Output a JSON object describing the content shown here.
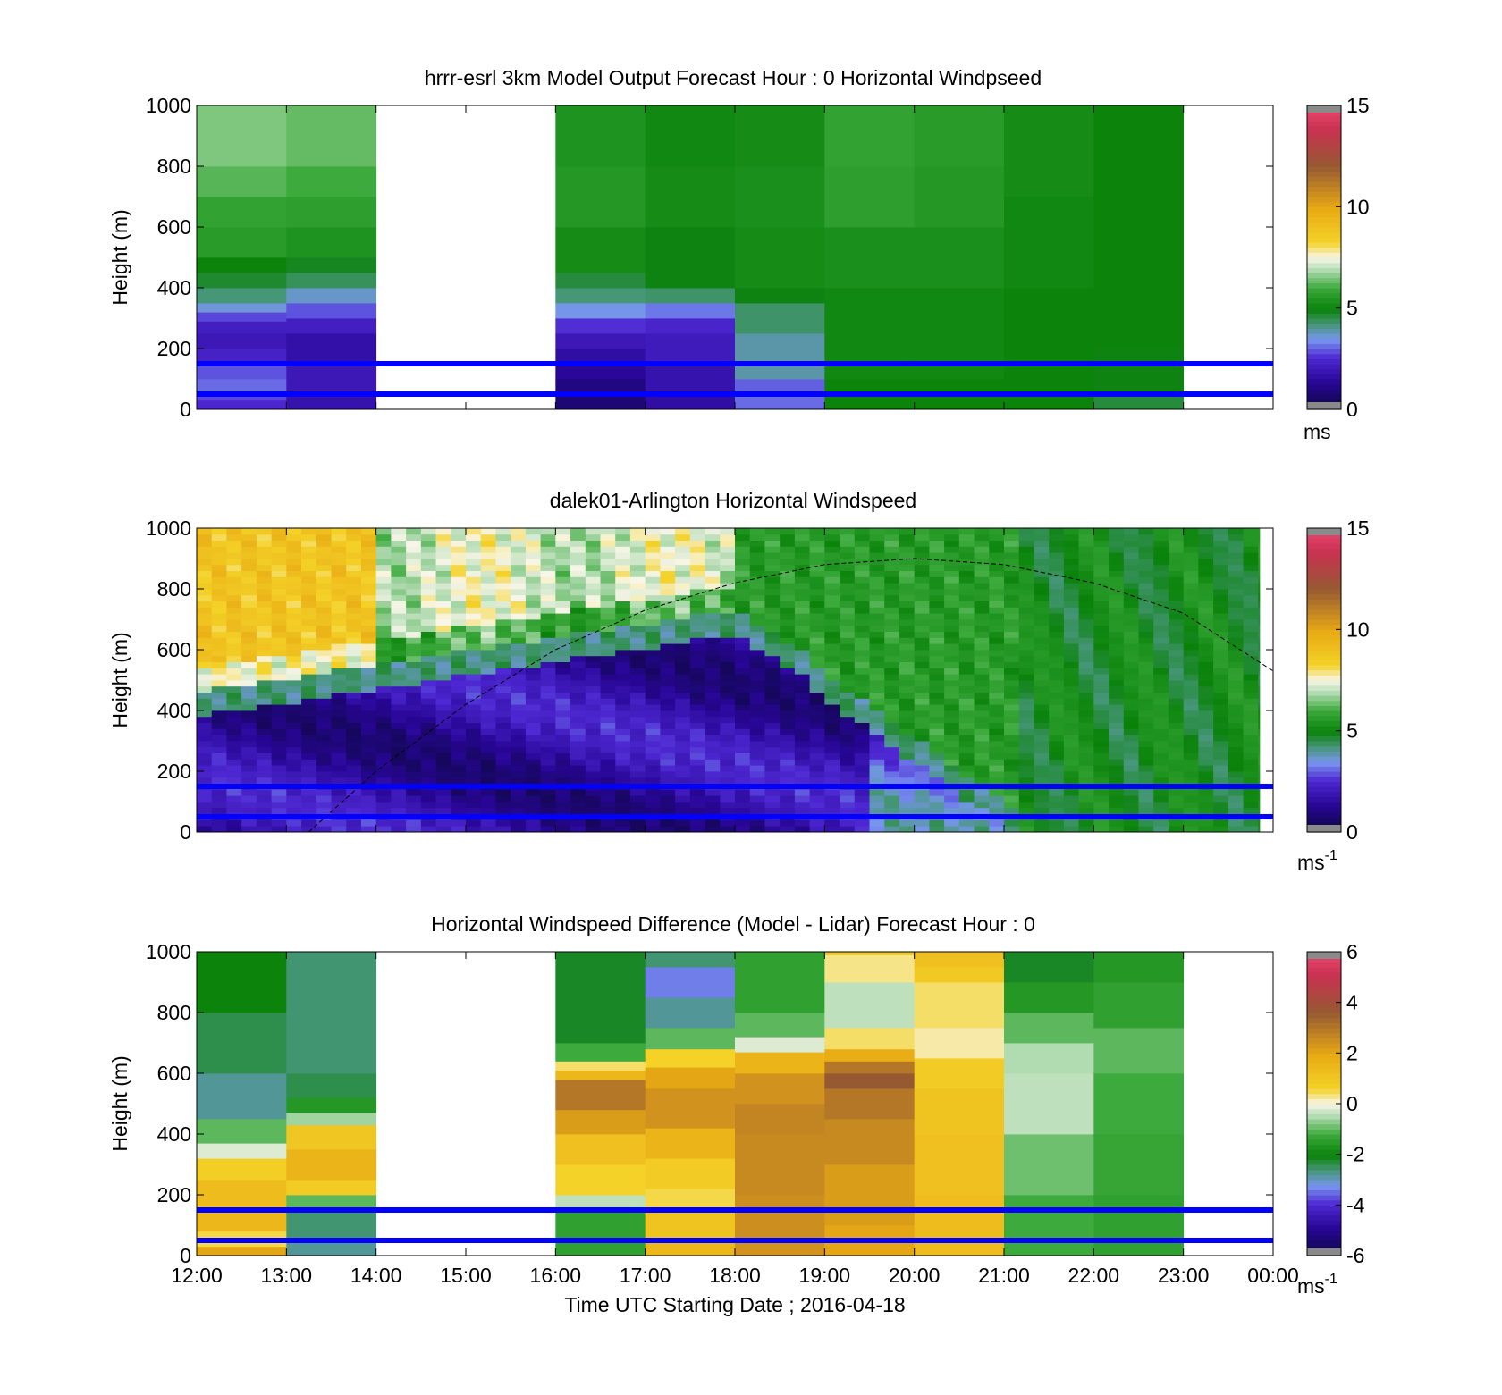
{
  "figure": {
    "xlabel": "Time UTC  Starting Date ; 2016-04-18",
    "x_ticks": [
      "12:00",
      "13:00",
      "14:00",
      "15:00",
      "16:00",
      "17:00",
      "18:00",
      "19:00",
      "20:00",
      "21:00",
      "22:00",
      "23:00",
      "00:00"
    ],
    "ylabel": "Height (m)",
    "y_ticks": [
      "0",
      "200",
      "400",
      "600",
      "800",
      "1000"
    ]
  },
  "chart_data": [
    {
      "type": "heatmap",
      "title": "hrrr-esrl 3km Model Output   Forecast Hour : 0 Horizontal Windpseed",
      "x_range": [
        "12:00",
        "00:00"
      ],
      "ylim": [
        0,
        1000
      ],
      "colorbar": {
        "min": 0,
        "max": 15,
        "ticks": [
          "0",
          "5",
          "10",
          "15"
        ],
        "unit": "ms"
      },
      "reference_lines_m": [
        150,
        50
      ],
      "reference_line_color": "#0000ff",
      "columns": [
        {
          "start": "12:00",
          "end": "13:00",
          "hours": [
            12,
            13
          ],
          "levels": [
            [
              0,
              30,
              2.5
            ],
            [
              30,
              60,
              2.8
            ],
            [
              60,
              100,
              3.1
            ],
            [
              100,
              150,
              2.9
            ],
            [
              150,
              200,
              2.3
            ],
            [
              200,
              250,
              2.0
            ],
            [
              250,
              290,
              2.2
            ],
            [
              290,
              320,
              2.8
            ],
            [
              320,
              350,
              3.6
            ],
            [
              350,
              400,
              4.2
            ],
            [
              400,
              450,
              4.7
            ],
            [
              450,
              500,
              5.0
            ],
            [
              500,
              600,
              5.6
            ],
            [
              600,
              700,
              5.8
            ],
            [
              700,
              800,
              6.2
            ],
            [
              800,
              1000,
              6.5
            ]
          ]
        },
        {
          "start": "13:00",
          "end": "14:00",
          "hours": [
            13,
            14
          ],
          "levels": [
            [
              0,
              50,
              1.8
            ],
            [
              50,
              150,
              2.0
            ],
            [
              150,
              250,
              1.7
            ],
            [
              250,
              300,
              2.2
            ],
            [
              300,
              350,
              2.9
            ],
            [
              350,
              400,
              3.7
            ],
            [
              400,
              450,
              4.4
            ],
            [
              450,
              500,
              4.8
            ],
            [
              500,
              600,
              5.4
            ],
            [
              600,
              700,
              5.7
            ],
            [
              700,
              800,
              6.0
            ],
            [
              800,
              1000,
              6.3
            ]
          ]
        },
        {
          "start": "16:00",
          "end": "17:00",
          "hours": [
            16,
            17
          ],
          "levels": [
            [
              0,
              50,
              0.8
            ],
            [
              50,
              100,
              1.0
            ],
            [
              100,
              150,
              1.4
            ],
            [
              150,
              200,
              1.6
            ],
            [
              200,
              250,
              2.0
            ],
            [
              250,
              300,
              2.6
            ],
            [
              300,
              350,
              3.5
            ],
            [
              350,
              400,
              4.2
            ],
            [
              400,
              450,
              4.6
            ],
            [
              450,
              600,
              5.2
            ],
            [
              600,
              800,
              5.5
            ],
            [
              800,
              1000,
              5.4
            ]
          ]
        },
        {
          "start": "17:00",
          "end": "18:00",
          "hours": [
            17,
            18
          ],
          "levels": [
            [
              0,
              50,
              1.6
            ],
            [
              50,
              150,
              1.8
            ],
            [
              150,
              250,
              2.1
            ],
            [
              250,
              300,
              2.4
            ],
            [
              300,
              350,
              3.2
            ],
            [
              350,
              400,
              4.3
            ],
            [
              400,
              600,
              4.9
            ],
            [
              600,
              800,
              5.2
            ],
            [
              800,
              1000,
              5.1
            ]
          ]
        },
        {
          "start": "18:00",
          "end": "19:00",
          "hours": [
            18,
            19
          ],
          "levels": [
            [
              0,
              50,
              3.1
            ],
            [
              50,
              100,
              3.0
            ],
            [
              100,
              250,
              3.9
            ],
            [
              250,
              350,
              4.3
            ],
            [
              350,
              400,
              4.9
            ],
            [
              400,
              600,
              5.2
            ],
            [
              600,
              800,
              5.3
            ],
            [
              800,
              1000,
              5.2
            ]
          ]
        },
        {
          "start": "19:00",
          "end": "20:00",
          "hours": [
            19,
            20
          ],
          "levels": [
            [
              0,
              100,
              5.0
            ],
            [
              100,
              400,
              5.1
            ],
            [
              400,
              600,
              5.3
            ],
            [
              600,
              800,
              5.7
            ],
            [
              800,
              1000,
              5.8
            ]
          ]
        },
        {
          "start": "20:00",
          "end": "21:00",
          "hours": [
            20,
            21
          ],
          "levels": [
            [
              0,
              100,
              5.0
            ],
            [
              100,
              400,
              5.1
            ],
            [
              400,
              600,
              5.3
            ],
            [
              600,
              800,
              5.5
            ],
            [
              800,
              1000,
              5.6
            ]
          ]
        },
        {
          "start": "21:00",
          "end": "22:00",
          "hours": [
            21,
            22
          ],
          "levels": [
            [
              0,
              100,
              5.0
            ],
            [
              100,
              400,
              5.0
            ],
            [
              400,
              700,
              5.1
            ],
            [
              700,
              1000,
              5.2
            ]
          ]
        },
        {
          "start": "22:00",
          "end": "23:00",
          "hours": [
            22,
            23
          ],
          "levels": [
            [
              0,
              50,
              4.6
            ],
            [
              50,
              200,
              4.9
            ],
            [
              200,
              1000,
              5.0
            ]
          ]
        }
      ]
    },
    {
      "type": "heatmap",
      "title": "dalek01-Arlington  Horizontal Windspeed",
      "x_range": [
        "12:00",
        "00:00"
      ],
      "ylim": [
        0,
        1000
      ],
      "colorbar": {
        "min": 0,
        "max": 15,
        "ticks": [
          "0",
          "5",
          "10",
          "15"
        ],
        "unit": "ms",
        "unit_exponent": "-1"
      },
      "reference_lines_m": [
        150,
        50
      ],
      "reference_line_color": "#0000ff",
      "curve_label": "dashed black curve",
      "curve": {
        "hours": [
          13.25,
          14,
          15,
          16,
          17,
          18,
          19,
          20,
          21,
          22,
          23,
          24
        ],
        "heights_m": [
          0,
          200,
          420,
          600,
          730,
          820,
          880,
          900,
          880,
          820,
          720,
          530
        ]
      }
    },
    {
      "type": "heatmap",
      "title": "Horizontal Windspeed Difference (Model - Lidar) Forecast Hour : 0",
      "x_range": [
        "12:00",
        "00:00"
      ],
      "ylim": [
        0,
        1000
      ],
      "colorbar": {
        "min": -6,
        "max": 6,
        "ticks": [
          "-6",
          "-4",
          "-2",
          "0",
          "2",
          "4",
          "6"
        ],
        "unit": "ms",
        "unit_exponent": "-1"
      },
      "reference_lines_m": [
        150,
        50
      ],
      "reference_line_color": "#0000ff",
      "columns": [
        {
          "start": "12:00",
          "end": "13:00",
          "hours": [
            12,
            13
          ],
          "levels": [
            [
              0,
              30,
              2.0
            ],
            [
              30,
              80,
              0.5
            ],
            [
              80,
              150,
              1.5
            ],
            [
              150,
              250,
              1.3
            ],
            [
              250,
              320,
              0.7
            ],
            [
              320,
              370,
              -0.2
            ],
            [
              370,
              450,
              -1.0
            ],
            [
              450,
              600,
              -2.8
            ],
            [
              600,
              800,
              -2.4
            ],
            [
              800,
              1000,
              -2.0
            ]
          ]
        },
        {
          "start": "13:00",
          "end": "14:00",
          "hours": [
            13,
            14
          ],
          "levels": [
            [
              0,
              60,
              -2.8
            ],
            [
              60,
              150,
              -2.6
            ],
            [
              150,
              200,
              -1.0
            ],
            [
              200,
              250,
              0.8
            ],
            [
              250,
              350,
              1.6
            ],
            [
              350,
              430,
              1.0
            ],
            [
              430,
              470,
              -0.6
            ],
            [
              470,
              520,
              -1.6
            ],
            [
              520,
              600,
              -2.4
            ],
            [
              600,
              1000,
              -2.6
            ]
          ]
        },
        {
          "start": "16:00",
          "end": "17:00",
          "hours": [
            16,
            17
          ],
          "levels": [
            [
              0,
              150,
              -1.4
            ],
            [
              150,
              200,
              -0.4
            ],
            [
              200,
              300,
              0.6
            ],
            [
              300,
              400,
              1.2
            ],
            [
              400,
              480,
              2.2
            ],
            [
              480,
              580,
              3.0
            ],
            [
              580,
              610,
              1.5
            ],
            [
              610,
              640,
              0.4
            ],
            [
              640,
              700,
              -1.2
            ],
            [
              700,
              1000,
              -2.2
            ]
          ]
        },
        {
          "start": "17:00",
          "end": "18:00",
          "hours": [
            17,
            18
          ],
          "levels": [
            [
              0,
              50,
              1.5
            ],
            [
              50,
              150,
              1.1
            ],
            [
              150,
              220,
              0.5
            ],
            [
              220,
              320,
              0.8
            ],
            [
              320,
              420,
              1.6
            ],
            [
              420,
              550,
              2.4
            ],
            [
              550,
              620,
              2.0
            ],
            [
              620,
              680,
              0.6
            ],
            [
              680,
              750,
              -1.0
            ],
            [
              750,
              850,
              -2.8
            ],
            [
              850,
              950,
              -3.4
            ],
            [
              950,
              1000,
              -2.6
            ]
          ]
        },
        {
          "start": "18:00",
          "end": "19:00",
          "hours": [
            18,
            19
          ],
          "levels": [
            [
              0,
              50,
              2.4
            ],
            [
              50,
              200,
              2.5
            ],
            [
              200,
              400,
              2.6
            ],
            [
              400,
              500,
              2.7
            ],
            [
              500,
              600,
              2.4
            ],
            [
              600,
              670,
              1.6
            ],
            [
              670,
              720,
              -0.2
            ],
            [
              720,
              800,
              -1.0
            ],
            [
              800,
              1000,
              -1.4
            ]
          ]
        },
        {
          "start": "19:00",
          "end": "20:00",
          "hours": [
            19,
            20
          ],
          "levels": [
            [
              0,
              100,
              2.0
            ],
            [
              100,
              300,
              2.2
            ],
            [
              300,
              450,
              2.6
            ],
            [
              450,
              550,
              3.0
            ],
            [
              550,
              600,
              3.6
            ],
            [
              600,
              640,
              3.0
            ],
            [
              640,
              680,
              1.8
            ],
            [
              680,
              750,
              0.4
            ],
            [
              750,
              900,
              -0.4
            ],
            [
              900,
              990,
              0.3
            ],
            [
              990,
              1000,
              1.0
            ]
          ]
        },
        {
          "start": "20:00",
          "end": "21:00",
          "hours": [
            20,
            21
          ],
          "levels": [
            [
              0,
              200,
              1.3
            ],
            [
              200,
              400,
              1.2
            ],
            [
              400,
              550,
              1.1
            ],
            [
              550,
              650,
              0.8
            ],
            [
              650,
              750,
              0.2
            ],
            [
              750,
              900,
              0.4
            ],
            [
              900,
              950,
              0.9
            ],
            [
              950,
              1000,
              1.2
            ]
          ]
        },
        {
          "start": "21:00",
          "end": "22:00",
          "hours": [
            21,
            22
          ],
          "levels": [
            [
              0,
              200,
              -1.2
            ],
            [
              200,
              400,
              -0.9
            ],
            [
              400,
              600,
              -0.4
            ],
            [
              600,
              700,
              -0.5
            ],
            [
              700,
              800,
              -1.0
            ],
            [
              800,
              900,
              -1.6
            ],
            [
              900,
              1000,
              -2.2
            ]
          ]
        },
        {
          "start": "22:00",
          "end": "23:00",
          "hours": [
            22,
            23
          ],
          "levels": [
            [
              0,
              200,
              -1.4
            ],
            [
              200,
              400,
              -1.3
            ],
            [
              400,
              600,
              -1.2
            ],
            [
              600,
              750,
              -1.0
            ],
            [
              750,
              900,
              -1.4
            ],
            [
              900,
              1000,
              -1.6
            ]
          ]
        }
      ]
    }
  ]
}
